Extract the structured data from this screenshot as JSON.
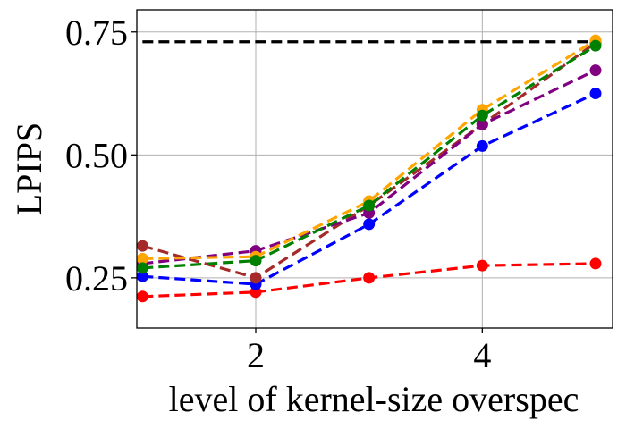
{
  "chart_data": {
    "type": "line",
    "title": "",
    "xlabel": "level of kernel-size overspec",
    "ylabel": "LPIPS",
    "xlim": [
      0.95,
      5.15
    ],
    "ylim": [
      0.148,
      0.795
    ],
    "grid": true,
    "x": [
      1,
      2,
      3,
      4,
      5
    ],
    "xticks": [
      2,
      4
    ],
    "xtick_labels": [
      "2",
      "4"
    ],
    "yticks": [
      0.25,
      0.5,
      0.75
    ],
    "ytick_labels": [
      "0.25",
      "0.50",
      "0.75"
    ],
    "reference_line": {
      "name": "reference",
      "color": "#000000",
      "y": 0.73
    },
    "series": [
      {
        "name": "series-red",
        "color": "#ff0000",
        "values": [
          0.212,
          0.221,
          0.25,
          0.275,
          0.279
        ]
      },
      {
        "name": "series-blue",
        "color": "#0000ff",
        "values": [
          0.253,
          0.237,
          0.359,
          0.518,
          0.625
        ]
      },
      {
        "name": "series-brown",
        "color": "#a52a2a",
        "values": [
          0.315,
          0.25,
          0.397,
          0.562,
          0.728
        ]
      },
      {
        "name": "series-purple",
        "color": "#800080",
        "values": [
          0.279,
          0.305,
          0.382,
          0.562,
          0.672
        ]
      },
      {
        "name": "series-orange",
        "color": "#ffa500",
        "values": [
          0.289,
          0.293,
          0.406,
          0.592,
          0.733
        ]
      },
      {
        "name": "series-green",
        "color": "#008000",
        "values": [
          0.27,
          0.285,
          0.397,
          0.58,
          0.722
        ]
      }
    ]
  }
}
